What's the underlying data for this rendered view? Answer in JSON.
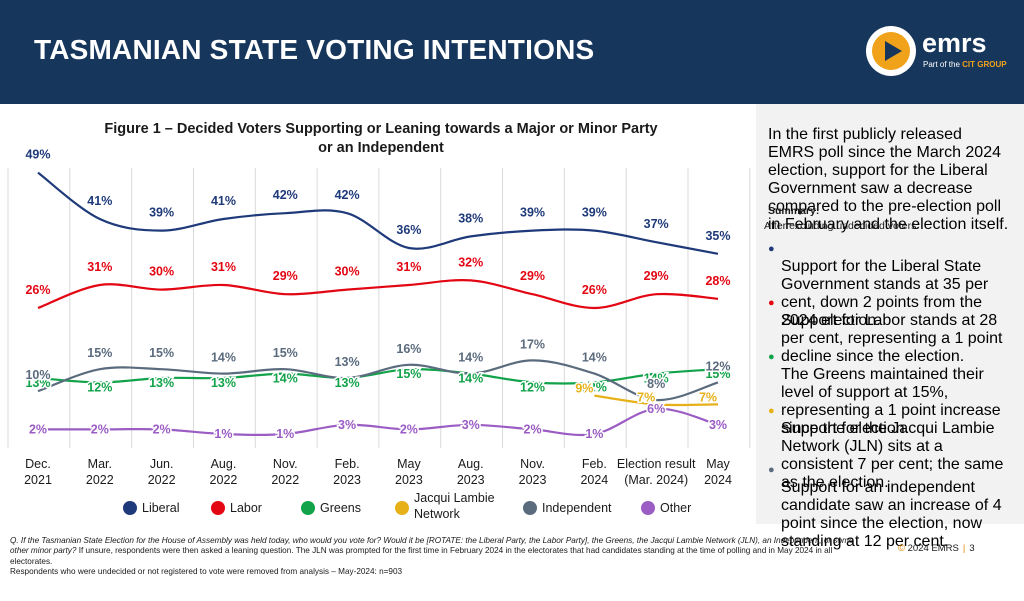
{
  "header": {
    "title": "TASMANIAN STATE VOTING INTENTIONS"
  },
  "logo": {
    "name": "emrs",
    "sub_prefix": "Part of the",
    "sub_group": "CIT GROUP"
  },
  "chart_data": {
    "type": "line",
    "title_line1": "Figure 1 – Decided Voters Supporting or Leaning towards a Major or Minor Party",
    "title_line2": "or an Independent",
    "categories": [
      [
        "Dec.",
        "2021"
      ],
      [
        "Mar.",
        "2022"
      ],
      [
        "Jun.",
        "2022"
      ],
      [
        "Aug.",
        "2022"
      ],
      [
        "Nov.",
        "2022"
      ],
      [
        "Feb.",
        "2023"
      ],
      [
        "May",
        "2023"
      ],
      [
        "Aug.",
        "2023"
      ],
      [
        "Nov.",
        "2023"
      ],
      [
        "Feb.",
        "2024"
      ],
      [
        "Election result",
        "(Mar. 2024)"
      ],
      [
        "May",
        "2024"
      ]
    ],
    "ylim": [
      0,
      52
    ],
    "legend_position": "bottom",
    "series": [
      {
        "key": "liberal",
        "name": "Liberal",
        "color": "#1f3a7a",
        "values": [
          49,
          41,
          39,
          41,
          42,
          42,
          36,
          38,
          39,
          39,
          37,
          35
        ]
      },
      {
        "key": "labor",
        "name": "Labor",
        "color": "#e30613",
        "values": [
          26,
          31,
          30,
          31,
          29,
          30,
          31,
          32,
          29,
          26,
          29,
          28
        ]
      },
      {
        "key": "greens",
        "name": "Greens",
        "color": "#12a34a",
        "values": [
          13,
          12,
          13,
          13,
          14,
          13,
          15,
          14,
          12,
          12,
          14,
          15
        ]
      },
      {
        "key": "jln",
        "name": "Jacqui Lambie Network",
        "name_lines": [
          "Jacqui Lambie",
          "Network"
        ],
        "color": "#e6b118",
        "values": [
          null,
          null,
          null,
          null,
          null,
          null,
          null,
          null,
          null,
          9,
          7,
          7
        ]
      },
      {
        "key": "independent",
        "name": "Independent",
        "color": "#5b6b7e",
        "values": [
          10,
          15,
          15,
          14,
          15,
          13,
          16,
          14,
          17,
          14,
          8,
          12
        ]
      },
      {
        "key": "other",
        "name": "Other",
        "color": "#9b5cc4",
        "values": [
          2,
          2,
          2,
          1,
          1,
          3,
          2,
          3,
          2,
          1,
          6,
          3
        ]
      }
    ]
  },
  "panel": {
    "intro": "In the first publicly released EMRS poll since the March 2024 election, support for the Liberal Government saw a decrease compared to the pre-election poll in February and the election itself.",
    "summary_title": "Summary:",
    "summary_sub": "After excluding undecided voters:",
    "bullets": [
      {
        "color": "#1f3a7a",
        "text": "Support for the Liberal State Government stands at 35 per cent, down 2 points from the 2024 election."
      },
      {
        "color": "#e30613",
        "text": "Support for Labor stands at 28 per cent, representing a 1 point decline since the election."
      },
      {
        "color": "#12a34a",
        "text": "The Greens maintained their level of support at 15%, representing a 1 point increase since the election."
      },
      {
        "color": "#e6b118",
        "text": "Support for the Jacqui Lambie Network (JLN) sits at a consistent 7 per cent; the same as the election."
      },
      {
        "color": "#5b6b7e",
        "text": "Support for an independent candidate saw an increase of 4 point since the election, now standing at 12 per cent."
      }
    ]
  },
  "footnote": {
    "question": "Q. If the Tasmanian State Election for the House of Assembly was held today, who would you vote for? Would it be [ROTATE: the Liberal Party, the Labor Party], the Greens, the Jacqui Lambie Network (JLN), an Independent, or some other minor party?",
    "detail": " If unsure, respondents were then asked a leaning question. The JLN was prompted for the first time in February 2024 in the electorates that had candidates standing at the time of polling and in May 2024 in all electorates.",
    "base": "Respondents who were undecided or not registered to vote were removed from analysis – May-2024: n=903"
  },
  "copyright": {
    "text": "2024 EMRS",
    "symbol": "©",
    "page": "3"
  }
}
